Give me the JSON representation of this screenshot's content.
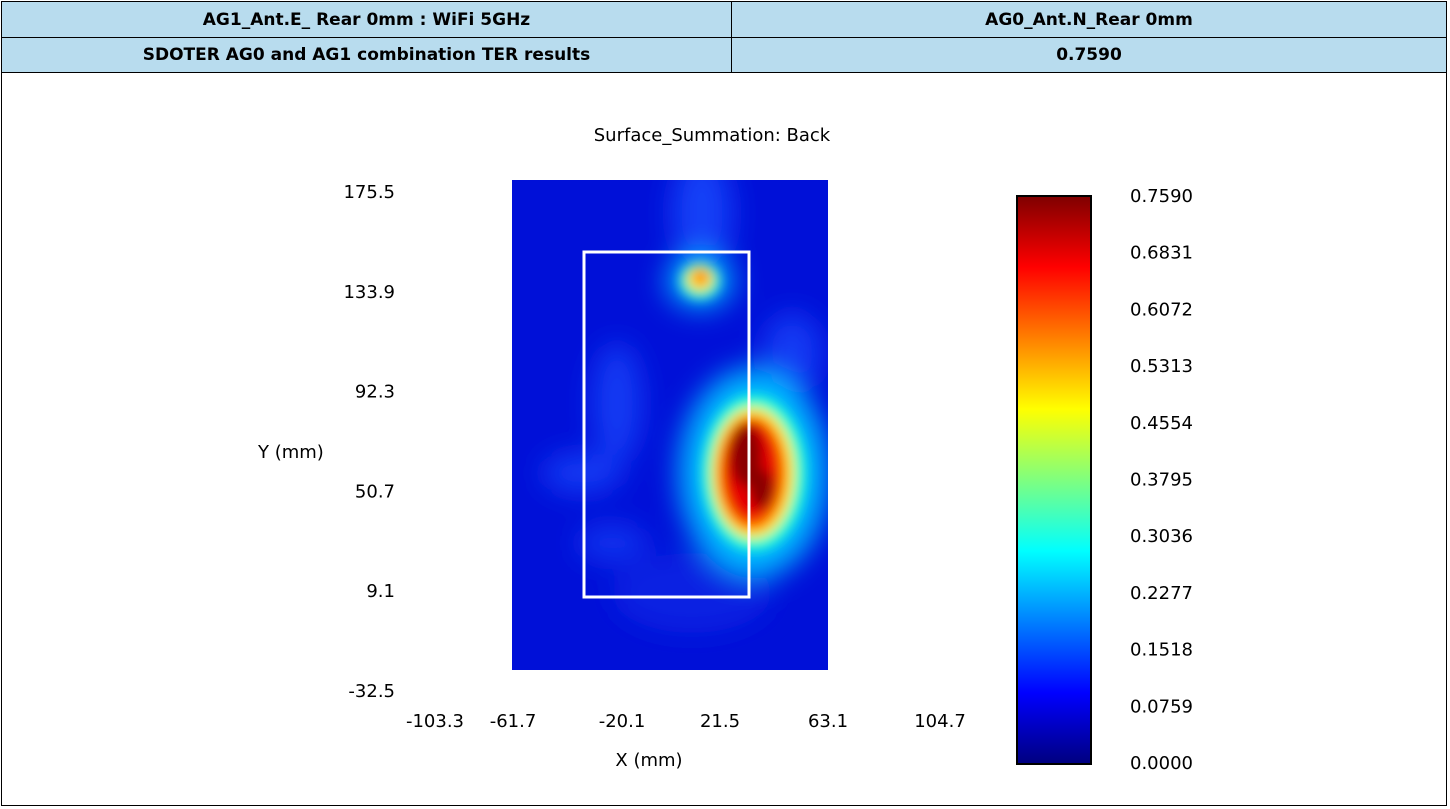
{
  "table": {
    "row1": {
      "left": "AG1_Ant.E_ Rear 0mm : WiFi 5GHz",
      "right": "AG0_Ant.N_Rear 0mm"
    },
    "row2": {
      "left": "SDOTER AG0 and AG1 combination TER results",
      "right": "0.7590"
    }
  },
  "chart_data": {
    "type": "heatmap",
    "title": "Surface_Summation: Back",
    "xlabel": "X (mm)",
    "ylabel": "Y (mm)",
    "x_ticks": [
      "-103.3",
      "-61.7",
      "-20.1",
      "21.5",
      "63.1",
      "104.7"
    ],
    "y_ticks": [
      "175.5",
      "133.9",
      "92.3",
      "50.7",
      "9.1",
      "-32.5"
    ],
    "xlim": [
      -103.3,
      104.7
    ],
    "ylim": [
      -32.5,
      175.5
    ],
    "data_extent": {
      "x": [
        -61.7,
        63.1
      ],
      "y": [
        -32.5,
        175.5
      ]
    },
    "colorbar_ticks": [
      "0.7590",
      "0.6831",
      "0.6072",
      "0.5313",
      "0.4554",
      "0.3795",
      "0.3036",
      "0.2277",
      "0.1518",
      "0.0759",
      "0.0000"
    ],
    "value_range": [
      0.0,
      0.759
    ],
    "colormap": [
      "#00007f",
      "#0000ff",
      "#007fff",
      "#00ffff",
      "#7fff7f",
      "#ffff00",
      "#ff7f00",
      "#ff0000",
      "#7f0000"
    ],
    "device_outline_color": "#ffffff",
    "hotspots": [
      {
        "x": 30,
        "y": 60,
        "value": 0.759
      },
      {
        "x": 0,
        "y": 136,
        "value": 0.45
      }
    ]
  }
}
